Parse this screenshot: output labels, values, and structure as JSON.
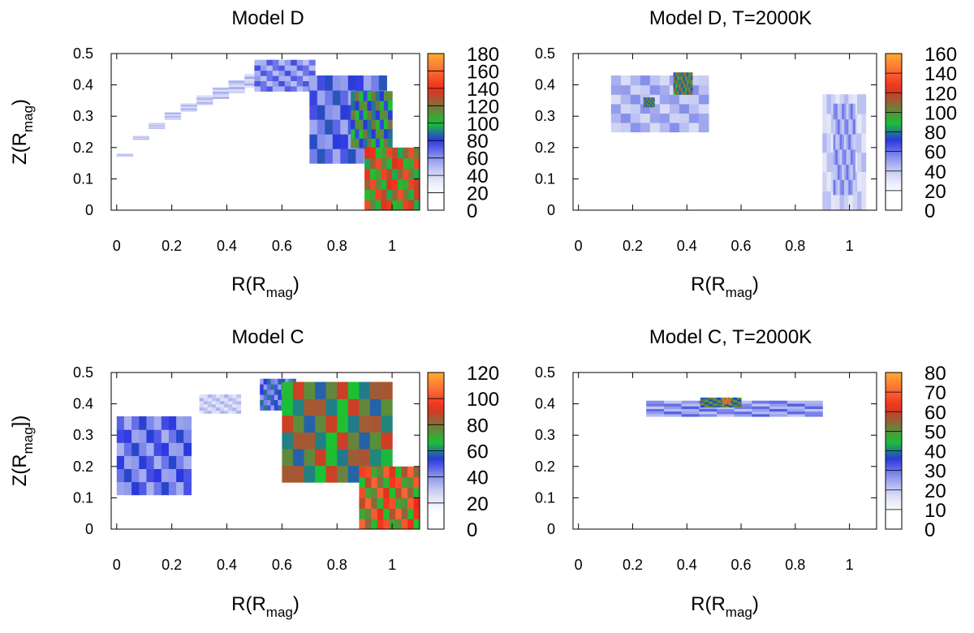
{
  "chart_data": [
    {
      "type": "heatmap",
      "title": "Model D",
      "xlabel": {
        "main": "R(R",
        "sub": "mag",
        "close": ")"
      },
      "ylabel": {
        "main": "Z(R",
        "sub": "mag",
        "close": ")"
      },
      "xlim": [
        -0.02,
        1.1
      ],
      "ylim": [
        0,
        0.5
      ],
      "x_ticks": [
        "0",
        "0.2",
        "0.4",
        "0.6",
        "0.8",
        "1"
      ],
      "y_ticks": [
        "0",
        "0.1",
        "0.2",
        "0.3",
        "0.4",
        "0.5"
      ],
      "colorbar": {
        "range": [
          0,
          180
        ],
        "ticks": [
          "0",
          "20",
          "40",
          "60",
          "80",
          "100",
          "120",
          "140",
          "160",
          "180"
        ]
      },
      "grid": false,
      "regions": [
        {
          "r0": 0.0,
          "r1": 0.58,
          "z_inner": 0.1,
          "z_outer": 0.44,
          "thickness_start": 0.006,
          "thickness_end": 0.05,
          "value": 55
        },
        {
          "r0": 0.5,
          "r1": 0.72,
          "z_inner": 0.38,
          "z_outer": 0.48,
          "value": 75
        },
        {
          "r0": 0.7,
          "r1": 0.98,
          "z_inner": 0.15,
          "z_outer": 0.43,
          "value": 85
        },
        {
          "r0": 0.85,
          "r1": 1.0,
          "z_inner": 0.2,
          "z_outer": 0.38,
          "value": 120
        },
        {
          "r0": 0.9,
          "r1": 1.1,
          "z_inner": 0.0,
          "z_outer": 0.2,
          "value": 150
        }
      ]
    },
    {
      "type": "heatmap",
      "title": "Model D, T=2000K",
      "xlabel": {
        "main": "R(R",
        "sub": "mag",
        "close": ")"
      },
      "xlim": [
        -0.02,
        1.1
      ],
      "ylim": [
        0,
        0.5
      ],
      "x_ticks": [
        "0",
        "0.2",
        "0.4",
        "0.6",
        "0.8",
        "1"
      ],
      "y_ticks": [
        "0",
        "0.1",
        "0.2",
        "0.3",
        "0.4",
        "0.5"
      ],
      "colorbar": {
        "range": [
          0,
          160
        ],
        "ticks": [
          "0",
          "20",
          "40",
          "60",
          "80",
          "100",
          "120",
          "140",
          "160"
        ]
      },
      "grid": false,
      "regions": [
        {
          "r0": 0.12,
          "r1": 0.48,
          "z_inner": 0.25,
          "z_outer": 0.43,
          "value": 55
        },
        {
          "r0": 0.24,
          "r1": 0.28,
          "z_inner": 0.33,
          "z_outer": 0.36,
          "value": 110
        },
        {
          "r0": 0.35,
          "r1": 0.42,
          "z_inner": 0.37,
          "z_outer": 0.44,
          "value": 115
        },
        {
          "r0": 0.9,
          "r1": 1.06,
          "z_inner": 0.0,
          "z_outer": 0.37,
          "value": 45
        },
        {
          "r0": 0.94,
          "r1": 1.02,
          "z_inner": 0.05,
          "z_outer": 0.34,
          "value": 60
        }
      ]
    },
    {
      "type": "heatmap",
      "title": "Model C",
      "xlabel": {
        "main": "R(R",
        "sub": "mag",
        "close": ")"
      },
      "ylabel": {
        "main": "Z(R",
        "sub": "mag",
        "close": "])"
      },
      "xlim": [
        -0.02,
        1.1
      ],
      "ylim": [
        0,
        0.5
      ],
      "x_ticks": [
        "0",
        "0.2",
        "0.4",
        "0.6",
        "0.8",
        "1"
      ],
      "y_ticks": [
        "0",
        "0.1",
        "0.2",
        "0.3",
        "0.4",
        "0.5"
      ],
      "colorbar": {
        "range": [
          0,
          120
        ],
        "ticks": [
          "0",
          "20",
          "40",
          "60",
          "80",
          "100",
          "120"
        ]
      },
      "grid": false,
      "regions": [
        {
          "r0": 0.0,
          "r1": 0.27,
          "z_inner": 0.11,
          "z_outer": 0.36,
          "value": 55
        },
        {
          "r0": 0.3,
          "r1": 0.45,
          "z_inner": 0.37,
          "z_outer": 0.43,
          "value": 35
        },
        {
          "r0": 0.52,
          "r1": 0.65,
          "z_inner": 0.38,
          "z_outer": 0.48,
          "value": 60
        },
        {
          "r0": 0.6,
          "r1": 1.0,
          "z_inner": 0.15,
          "z_outer": 0.47,
          "value": 90
        },
        {
          "r0": 0.88,
          "r1": 1.1,
          "z_inner": 0.0,
          "z_outer": 0.2,
          "value": 105
        }
      ]
    },
    {
      "type": "heatmap",
      "title": "Model C, T=2000K",
      "xlabel": {
        "main": "R(R",
        "sub": "mag",
        "close": ")"
      },
      "xlim": [
        -0.02,
        1.1
      ],
      "ylim": [
        0,
        0.5
      ],
      "x_ticks": [
        "0",
        "0.2",
        "0.4",
        "0.6",
        "0.8",
        "1"
      ],
      "y_ticks": [
        "0",
        "0.1",
        "0.2",
        "0.3",
        "0.4",
        "0.5"
      ],
      "colorbar": {
        "range": [
          0,
          80
        ],
        "ticks": [
          "0",
          "10",
          "20",
          "30",
          "40",
          "50",
          "60",
          "70",
          "80"
        ]
      },
      "grid": false,
      "regions": [
        {
          "r0": 0.25,
          "r1": 0.9,
          "z_inner": 0.36,
          "z_outer": 0.41,
          "value": 32
        },
        {
          "r0": 0.45,
          "r1": 0.6,
          "z_inner": 0.39,
          "z_outer": 0.42,
          "value": 55
        },
        {
          "r0": 0.53,
          "r1": 0.56,
          "z_inner": 0.4,
          "z_outer": 0.42,
          "value": 80
        }
      ]
    }
  ],
  "palette": {
    "stops": [
      "#ffffff",
      "#ffffff",
      "#d8dcf5",
      "#8f98ec",
      "#2a34e2",
      "#19c430",
      "#7f7040",
      "#ee2a1a",
      "#fc6c36",
      "#ffab2f"
    ],
    "axis": "#000000"
  }
}
